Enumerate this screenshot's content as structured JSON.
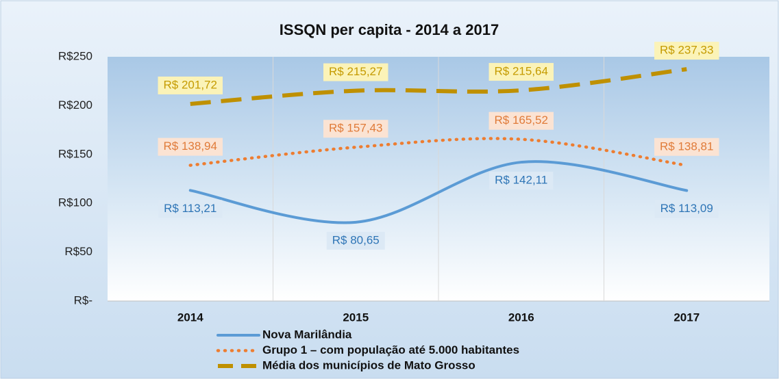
{
  "chart_data": {
    "type": "line",
    "title": "ISSQN per capita - 2014 a 2017",
    "categories": [
      "2014",
      "2015",
      "2016",
      "2017"
    ],
    "series": [
      {
        "name": "Nova Marilândia",
        "color": "#5b9bd5",
        "style": "solid",
        "label_position": "below",
        "values": [
          113.21,
          80.65,
          142.11,
          113.09
        ],
        "value_labels": [
          "R$ 113,21",
          "R$ 80,65",
          "R$ 142,11",
          "R$ 113,09"
        ]
      },
      {
        "name": "Grupo 1 – com população até 5.000 habitantes",
        "color": "#ed7d31",
        "style": "dotted",
        "label_position": "above",
        "values": [
          138.94,
          157.43,
          165.52,
          138.81
        ],
        "value_labels": [
          "R$ 138,94",
          "R$ 157,43",
          "R$ 165,52",
          "R$ 138,81"
        ]
      },
      {
        "name": "Média dos municípios de Mato Grosso",
        "color": "#bf9000",
        "style": "dashed",
        "label_position": "above",
        "values": [
          201.72,
          215.27,
          215.64,
          237.33
        ],
        "value_labels": [
          "R$ 201,72",
          "R$ 215,27",
          "R$ 215,64",
          "R$ 237,33"
        ]
      }
    ],
    "ylim": [
      0,
      250
    ],
    "yticks": [
      {
        "value": 0,
        "label": "R$-"
      },
      {
        "value": 50,
        "label": "R$50"
      },
      {
        "value": 100,
        "label": "R$100"
      },
      {
        "value": 150,
        "label": "R$150"
      },
      {
        "value": 200,
        "label": "R$200"
      },
      {
        "value": 250,
        "label": "R$250"
      }
    ],
    "grid": true,
    "smooth": true,
    "legend": "bottom"
  }
}
